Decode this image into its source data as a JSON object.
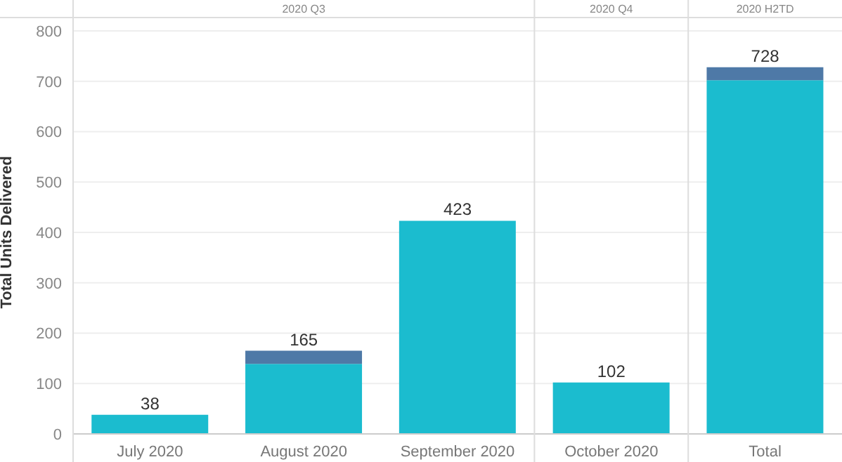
{
  "chart_data": {
    "type": "bar",
    "ylabel": "Total Units Delivered",
    "categories": [
      "July 2020",
      "August 2020",
      "September 2020",
      "October 2020",
      "Total"
    ],
    "series": [
      {
        "color": "#1bbccf",
        "values": [
          38,
          139,
          423,
          102,
          702
        ]
      },
      {
        "color": "#4e79a7",
        "values": [
          0,
          26,
          0,
          0,
          26
        ]
      }
    ],
    "stacked": true,
    "totals": [
      "38",
      "165",
      "423",
      "102",
      "728"
    ],
    "ylim": [
      0,
      800
    ],
    "yticks": [
      0,
      100,
      200,
      300,
      400,
      500,
      600,
      700,
      800
    ],
    "grid": "y",
    "legend": false,
    "annotations": [
      "2020 Q3",
      "2020 Q4",
      "2020 H2TD"
    ]
  }
}
